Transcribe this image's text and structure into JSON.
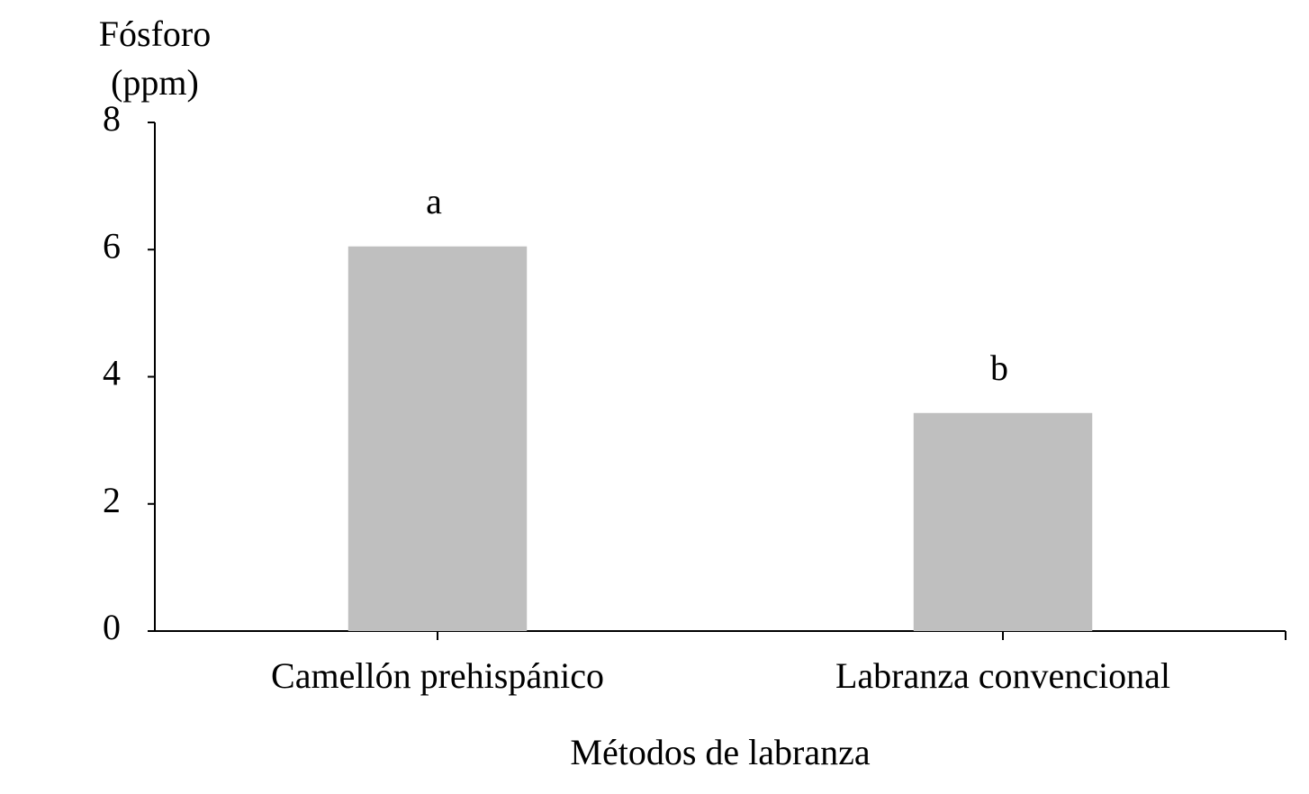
{
  "chart_data": {
    "type": "bar",
    "ylabel": [
      "Fósforo",
      "(ppm)"
    ],
    "xlabel": "Métodos de labranza",
    "categories": [
      "Camellón prehispánico",
      "Labranza convencional"
    ],
    "values": [
      6.05,
      3.43
    ],
    "bar_labels": [
      "a",
      "b"
    ],
    "color": "#bfbfbf",
    "ylim": [
      0,
      8
    ],
    "yticks": [
      0,
      2,
      4,
      6,
      8
    ],
    "grid": false
  }
}
